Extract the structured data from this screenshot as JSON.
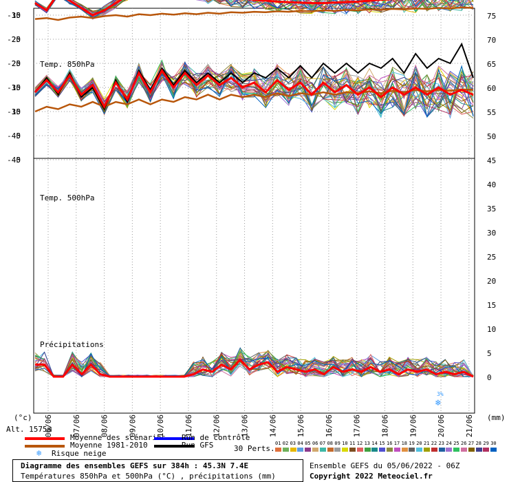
{
  "chart_data": {
    "type": "line",
    "panels": [
      {
        "label": "Temp. 850hPa",
        "y_left_ticks": [
          30,
          25,
          20,
          15,
          10,
          5,
          0
        ],
        "y_right_ticks": [
          75,
          70,
          65,
          60,
          55,
          50
        ],
        "mean_scenarios": [
          14,
          16.5,
          14,
          17.5,
          13.5,
          15.5,
          11,
          16,
          12.5,
          18,
          14,
          18.5,
          15,
          18,
          15.5,
          17.5,
          15.5,
          17,
          15,
          16,
          14,
          16.5,
          14.5,
          16,
          13.5,
          16,
          14,
          15.5,
          13.5,
          15,
          13,
          15,
          13.5,
          15,
          13.5,
          15,
          13.5,
          14.5,
          13.5
        ],
        "mean_1981_2010": [
          10,
          11,
          10.5,
          11.5,
          11,
          12,
          11,
          12,
          11.5,
          12.5,
          11.5,
          12.5,
          12,
          13,
          12.5,
          13.5,
          12.5,
          13.5,
          13,
          13.5,
          13,
          13.8,
          13.2,
          13.8,
          13.5,
          14,
          13.5,
          14,
          13.8,
          14.2,
          13.8,
          14.3,
          14,
          14.5,
          14.2,
          14.5,
          14.3,
          14.6,
          14.5
        ],
        "run_gfs": [
          14,
          17,
          13.5,
          18,
          13,
          15,
          10.5,
          16.5,
          12,
          18.5,
          14.5,
          19,
          15.5,
          18.5,
          16,
          18,
          16,
          18,
          16,
          18,
          17,
          19,
          17,
          19.5,
          17,
          20,
          18,
          20,
          18,
          20,
          19,
          21,
          18,
          22,
          19,
          21,
          20,
          24,
          17
        ]
      },
      {
        "label": "Temp. 500hPa",
        "y_left_ticks": [
          -5,
          -10,
          -15,
          -20,
          -25,
          -30,
          -35,
          -40,
          -45
        ],
        "y_right_ticks": [
          45,
          40,
          35,
          30,
          25,
          20,
          15,
          10,
          5,
          0
        ],
        "mean_scenarios": [
          -12.5,
          -14,
          -10.5,
          -12,
          -13.5,
          -15,
          -14,
          -12.5,
          -11,
          -9.5,
          -8,
          -7.5,
          -9,
          -10,
          -10.5,
          -11,
          -11.2,
          -11.5,
          -11.6,
          -11.8,
          -12,
          -12.2,
          -12.3,
          -12.4,
          -12.5,
          -12.5,
          -12.4,
          -12.3,
          -12.2,
          -12,
          -11.8,
          -11.7,
          -11.6,
          -11.5,
          -11.3,
          -11.2,
          -11,
          -10.8,
          -10.5
        ],
        "mean_1981_2010": [
          -15.8,
          -15.6,
          -16,
          -15.5,
          -15.3,
          -15.6,
          -15.2,
          -15,
          -15.3,
          -14.8,
          -15,
          -14.7,
          -14.9,
          -14.6,
          -14.8,
          -14.5,
          -14.7,
          -14.4,
          -14.5,
          -14.3,
          -14.4,
          -14.2,
          -14.3,
          -14.1,
          -14.2,
          -14,
          -14.1,
          -13.9,
          -14,
          -13.8,
          -13.9,
          -13.7,
          -13.8,
          -13.6,
          -13.7,
          -13.5,
          -13.6,
          -13.4,
          -13.5
        ],
        "run_gfs": [
          -12.5,
          -14,
          -10.5,
          -12,
          -13.5,
          -15,
          -14,
          -12.5,
          -11,
          -9.5,
          -7.5,
          -7,
          -8.5,
          -9.5,
          -10,
          -10.5,
          -11,
          -11,
          -10.5,
          -11,
          -10.5,
          -10,
          -10.5,
          -10,
          -9.5,
          -10,
          -10.5,
          -11,
          -11,
          -10,
          -10.5,
          -11,
          -10,
          -9.5,
          -9,
          -10,
          -9,
          -8.5,
          -5.5
        ]
      }
    ],
    "precipitation": {
      "label": "Précipitations",
      "mean_scenarios": [
        2.5,
        2.5,
        0,
        0,
        2.5,
        0.5,
        2.5,
        0.5,
        0,
        0,
        0,
        0,
        0,
        0,
        0,
        0,
        0,
        0.5,
        1.5,
        1,
        2.5,
        1.5,
        3.5,
        1.5,
        2.5,
        3,
        1,
        2,
        1.5,
        1,
        1.5,
        0.5,
        2,
        1,
        1.5,
        1,
        2,
        1,
        1.5,
        0.5,
        1.5,
        1,
        1.5,
        0.5,
        1,
        0.5,
        1,
        0
      ]
    },
    "x_ticks": [
      "06/06",
      "07/06",
      "08/06",
      "09/06",
      "10/06",
      "11/06",
      "12/06",
      "13/06",
      "14/06",
      "15/06",
      "16/06",
      "17/06",
      "18/06",
      "19/06",
      "20/06",
      "21/06"
    ],
    "left_unit": "(°c)",
    "right_unit": "(mm)",
    "altitude": "Alt. 1575m",
    "snow_risk_marker": "3%",
    "legend": [
      {
        "label": "Moyenne des scénarios",
        "color": "#ff0000"
      },
      {
        "label": "Moyenne 1981-2010",
        "color": "#b8560a"
      },
      {
        "label": "Risque neige",
        "color": "#3399ff"
      },
      {
        "label": "Run de contrôle",
        "color": "#0000ff"
      },
      {
        "label": "Run GFS",
        "color": "#000000"
      }
    ],
    "perts_label": "30 Perts.",
    "perts": [
      "01",
      "02",
      "03",
      "04",
      "05",
      "06",
      "07",
      "08",
      "09",
      "10",
      "11",
      "12",
      "13",
      "14",
      "15",
      "16",
      "17",
      "18",
      "19",
      "20",
      "21",
      "22",
      "23",
      "24",
      "25",
      "26",
      "27",
      "28",
      "29",
      "30"
    ],
    "pert_colors": [
      "#e0703c",
      "#6fb05a",
      "#e6b800",
      "#5e9ee0",
      "#8c3a8c",
      "#d2a86e",
      "#3fb8a6",
      "#c46a2c",
      "#9b9b9b",
      "#d9d900",
      "#7e4f22",
      "#e06060",
      "#40a040",
      "#1a8a8a",
      "#5050d0",
      "#8a8a40",
      "#c050c0",
      "#e09040",
      "#606060",
      "#50c0e0",
      "#a0a000",
      "#c03030",
      "#2060a0",
      "#a070d0",
      "#30c060",
      "#d070a0",
      "#806000",
      "#404090",
      "#b03060",
      "#0060c0"
    ]
  },
  "footer": {
    "title": "Diagramme des ensembles GEFS sur 384h : 45.3N 7.4E",
    "subtitle": "Températures 850hPa et 500hPa (°C) , précipitations (mm)",
    "run": "Ensemble GEFS du 05/06/2022 - 06Z",
    "copyright": "Copyright 2022 Meteociel.fr"
  }
}
